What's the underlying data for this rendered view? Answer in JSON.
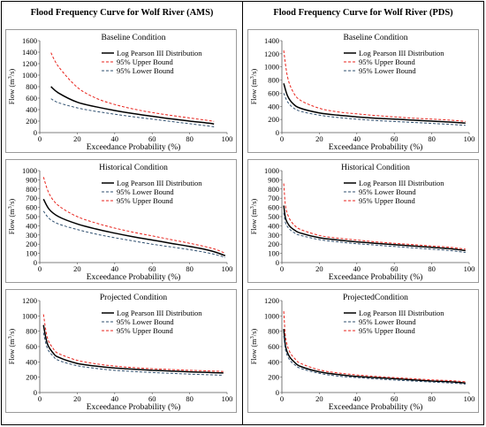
{
  "columns": [
    {
      "title": "Flood Frequency Curve for Wolf River (AMS)"
    },
    {
      "title": "Flood Frequency Curve for Wolf River (PDS)"
    }
  ],
  "colors": {
    "lp3": "#000000",
    "upper": "#e8231c",
    "lower": "#2f4f6f"
  },
  "chart_data": [
    {
      "type": "line",
      "title": "Baseline Condition",
      "xlabel": "Exceedance Probability (%)",
      "ylabel_html": "Flow (m<tspan baseline-shift='super' font-size='6'>3</tspan>/s)",
      "xlim": [
        0,
        100
      ],
      "ylim": [
        0,
        1600
      ],
      "xticks": [
        "0",
        "20",
        "40",
        "60",
        "80",
        "100"
      ],
      "yticks": [
        "0",
        "200",
        "400",
        "600",
        "800",
        "1000",
        "1200",
        "1400",
        "1600"
      ],
      "legend": [
        "Log Pearson III Distribution",
        "95% Upper Bound",
        "95% Lower Bound"
      ],
      "series": [
        {
          "name": "Log Pearson III Distribution",
          "x": [
            6,
            10,
            20,
            30,
            40,
            50,
            60,
            70,
            80,
            90,
            93
          ],
          "y": [
            800,
            690,
            530,
            450,
            385,
            330,
            285,
            240,
            200,
            165,
            150
          ]
        },
        {
          "name": "95% Upper Bound",
          "x": [
            6,
            10,
            20,
            30,
            40,
            50,
            60,
            70,
            80,
            90,
            93
          ],
          "y": [
            1390,
            1150,
            790,
            600,
            490,
            410,
            350,
            300,
            255,
            210,
            195
          ]
        },
        {
          "name": "95% Lower Bound",
          "x": [
            6,
            10,
            20,
            30,
            40,
            50,
            60,
            70,
            80,
            90,
            93
          ],
          "y": [
            590,
            520,
            430,
            370,
            320,
            275,
            235,
            195,
            155,
            115,
            100
          ]
        }
      ]
    },
    {
      "type": "line",
      "title": "Baseline Condition",
      "xlabel": "Exceedance Probability (%)",
      "ylabel_html": "Flow (m<tspan baseline-shift='super' font-size='6'>3</tspan>/s)",
      "xlim": [
        0,
        100
      ],
      "ylim": [
        0,
        1400
      ],
      "xticks": [
        "0",
        "20",
        "40",
        "60",
        "80",
        "100"
      ],
      "yticks": [
        "0",
        "200",
        "400",
        "600",
        "800",
        "1000",
        "1200",
        "1400"
      ],
      "legend": [
        "Log Pearson III Distribution",
        "95% Upper Bound",
        "95% Lower Bound"
      ],
      "series": [
        {
          "name": "Log Pearson III Distribution",
          "x": [
            1,
            3,
            6,
            10,
            20,
            30,
            40,
            50,
            60,
            70,
            80,
            90,
            98
          ],
          "y": [
            750,
            560,
            440,
            370,
            300,
            265,
            240,
            220,
            205,
            190,
            175,
            160,
            145
          ]
        },
        {
          "name": "95% Upper Bound",
          "x": [
            1,
            3,
            6,
            10,
            20,
            30,
            40,
            50,
            60,
            70,
            80,
            90,
            98
          ],
          "y": [
            1250,
            850,
            620,
            490,
            370,
            315,
            285,
            260,
            240,
            220,
            205,
            190,
            170
          ]
        },
        {
          "name": "95% Lower Bound",
          "x": [
            1,
            3,
            6,
            10,
            20,
            30,
            40,
            50,
            60,
            70,
            80,
            90,
            98
          ],
          "y": [
            600,
            470,
            380,
            325,
            265,
            230,
            205,
            185,
            170,
            155,
            140,
            125,
            110
          ]
        }
      ]
    },
    {
      "type": "line",
      "title": "Historical Condition",
      "xlabel": "Exceedance Probability (%)",
      "ylabel_html": "Flow (m<tspan baseline-shift='super' font-size='6'>3</tspan>/s)",
      "xlim": [
        0,
        100
      ],
      "ylim": [
        0,
        1000
      ],
      "xticks": [
        "0",
        "20",
        "40",
        "60",
        "80",
        "100"
      ],
      "yticks": [
        "0",
        "100",
        "200",
        "300",
        "400",
        "500",
        "600",
        "700",
        "800",
        "900",
        "1000"
      ],
      "legend": [
        "Log Pearson III Distribution",
        "95% Lower Bound",
        "95% Upper Bound"
      ],
      "series": [
        {
          "name": "Log Pearson III Distribution",
          "x": [
            2,
            5,
            10,
            20,
            30,
            40,
            50,
            60,
            70,
            80,
            90,
            95,
            99
          ],
          "y": [
            690,
            580,
            500,
            420,
            365,
            320,
            280,
            245,
            210,
            175,
            135,
            105,
            75
          ]
        },
        {
          "name": "95% Upper Bound",
          "x": [
            2,
            5,
            10,
            20,
            30,
            40,
            50,
            60,
            70,
            80,
            90,
            95,
            99
          ],
          "y": [
            930,
            750,
            620,
            500,
            430,
            375,
            330,
            290,
            250,
            210,
            165,
            135,
            100
          ]
        },
        {
          "name": "95% Lower Bound",
          "x": [
            2,
            5,
            10,
            20,
            30,
            40,
            50,
            60,
            70,
            80,
            90,
            95,
            99
          ],
          "y": [
            560,
            480,
            420,
            360,
            310,
            270,
            235,
            200,
            170,
            140,
            105,
            80,
            55
          ]
        }
      ]
    },
    {
      "type": "line",
      "title": "Historical Condition",
      "xlabel": "Exceedance Probability (%)",
      "ylabel_html": "Flow (m<tspan baseline-shift='super' font-size='6'>3</tspan>/s)",
      "xlim": [
        0,
        100
      ],
      "ylim": [
        0,
        1000
      ],
      "xticks": [
        "0",
        "20",
        "40",
        "60",
        "80",
        "100"
      ],
      "yticks": [
        "0",
        "100",
        "200",
        "300",
        "400",
        "500",
        "600",
        "700",
        "800",
        "900",
        "1000"
      ],
      "legend": [
        "Log Pearson III Distribution",
        "95% Lower Bound",
        "95% Upper Bound"
      ],
      "series": [
        {
          "name": "Log Pearson III Distribution",
          "x": [
            1,
            2,
            4,
            7,
            10,
            20,
            30,
            40,
            50,
            60,
            70,
            80,
            90,
            98
          ],
          "y": [
            620,
            480,
            400,
            350,
            320,
            270,
            245,
            225,
            210,
            195,
            180,
            165,
            150,
            130
          ]
        },
        {
          "name": "95% Upper Bound",
          "x": [
            1,
            2,
            4,
            7,
            10,
            20,
            30,
            40,
            50,
            60,
            70,
            80,
            90,
            98
          ],
          "y": [
            860,
            610,
            480,
            400,
            360,
            295,
            265,
            245,
            225,
            210,
            195,
            180,
            165,
            145
          ]
        },
        {
          "name": "95% Lower Bound",
          "x": [
            1,
            2,
            4,
            7,
            10,
            20,
            30,
            40,
            50,
            60,
            70,
            80,
            90,
            98
          ],
          "y": [
            540,
            430,
            365,
            320,
            295,
            250,
            225,
            205,
            190,
            175,
            160,
            145,
            130,
            110
          ]
        }
      ]
    },
    {
      "type": "line",
      "title": "Projected Condition",
      "xlabel": "Exceedance Probability (%)",
      "ylabel_html": "Flow (m<tspan baseline-shift='super' font-size='6'>3</tspan>/s)",
      "xlim": [
        0,
        100
      ],
      "ylim": [
        0,
        1200
      ],
      "xticks": [
        "0",
        "20",
        "40",
        "60",
        "80",
        "100"
      ],
      "yticks": [
        "0",
        "200",
        "400",
        "600",
        "800",
        "1000",
        "1200"
      ],
      "legend": [
        "Log Pearson III Distribution",
        "95% Lower Bound",
        "95% Upper Bound"
      ],
      "series": [
        {
          "name": "Log Pearson III Distribution",
          "x": [
            2,
            4,
            7,
            10,
            20,
            30,
            40,
            50,
            60,
            70,
            80,
            90,
            98
          ],
          "y": [
            880,
            640,
            520,
            460,
            380,
            345,
            320,
            305,
            290,
            280,
            270,
            262,
            255
          ]
        },
        {
          "name": "95% Upper Bound",
          "x": [
            2,
            4,
            7,
            10,
            20,
            30,
            40,
            50,
            60,
            70,
            80,
            90,
            98
          ],
          "y": [
            1020,
            720,
            580,
            510,
            420,
            375,
            345,
            325,
            310,
            300,
            290,
            282,
            275
          ]
        },
        {
          "name": "95% Lower Bound",
          "x": [
            2,
            4,
            7,
            10,
            20,
            30,
            40,
            50,
            60,
            70,
            80,
            90,
            98
          ],
          "y": [
            780,
            580,
            480,
            420,
            350,
            315,
            290,
            275,
            262,
            250,
            240,
            232,
            225
          ]
        }
      ]
    },
    {
      "type": "line",
      "title": "ProjectedCondition",
      "xlabel": "Exceedance Probability (%)",
      "ylabel_html": "Flow (m<tspan baseline-shift='super' font-size='6'>3</tspan>/s)",
      "xlim": [
        0,
        100
      ],
      "ylim": [
        0,
        1200
      ],
      "xticks": [
        "0",
        "20",
        "40",
        "60",
        "80",
        "100"
      ],
      "yticks": [
        "0",
        "200",
        "400",
        "600",
        "800",
        "1000",
        "1200"
      ],
      "legend": [
        "Log Pearson III Distribution",
        "95% Lower Bound",
        "95% Upper Bound"
      ],
      "series": [
        {
          "name": "Log Pearson III Distribution",
          "x": [
            1,
            2,
            4,
            7,
            10,
            20,
            30,
            40,
            50,
            60,
            70,
            80,
            90,
            98
          ],
          "y": [
            830,
            600,
            470,
            390,
            340,
            270,
            235,
            210,
            195,
            180,
            165,
            150,
            140,
            125
          ]
        },
        {
          "name": "95% Upper Bound",
          "x": [
            1,
            2,
            4,
            7,
            10,
            20,
            30,
            40,
            50,
            60,
            70,
            80,
            90,
            98
          ],
          "y": [
            1060,
            720,
            540,
            440,
            380,
            295,
            255,
            230,
            210,
            195,
            180,
            165,
            155,
            140
          ]
        },
        {
          "name": "95% Lower Bound",
          "x": [
            1,
            2,
            4,
            7,
            10,
            20,
            30,
            40,
            50,
            60,
            70,
            80,
            90,
            98
          ],
          "y": [
            740,
            550,
            430,
            360,
            315,
            250,
            215,
            195,
            178,
            163,
            150,
            137,
            125,
            110
          ]
        }
      ]
    }
  ]
}
